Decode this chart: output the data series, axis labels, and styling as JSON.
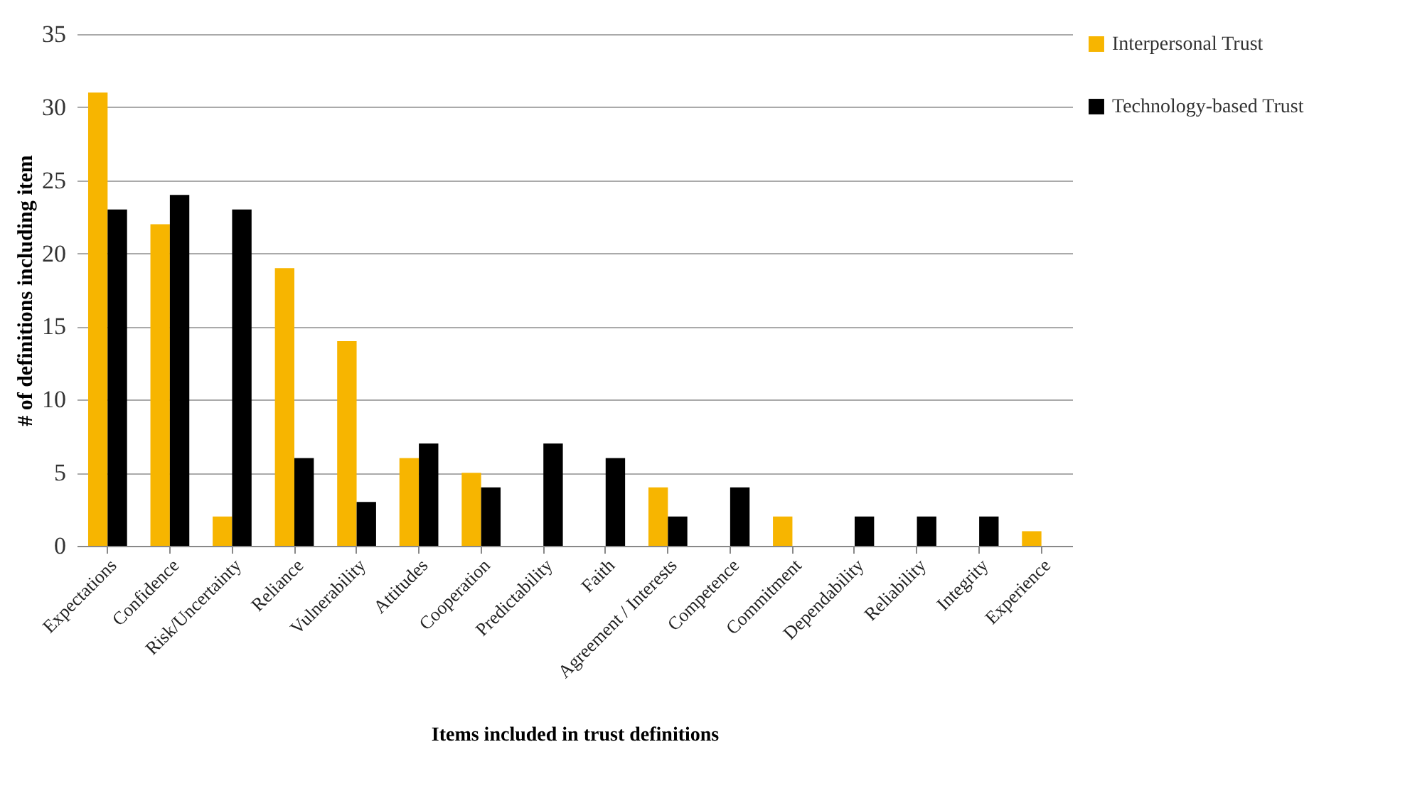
{
  "chart_data": {
    "type": "bar",
    "xlabel": "Items included in trust definitions",
    "ylabel": "# of definitions including item",
    "categories": [
      "Expectations",
      "Confidence",
      "Risk/Uncertainty",
      "Reliance",
      "Vulnerability",
      "Attitudes",
      "Cooperation",
      "Predictability",
      "Faith",
      "Agreement / Interests",
      "Competence",
      "Commitment",
      "Dependability",
      "Reliability",
      "Integrity",
      "Experience"
    ],
    "series": [
      {
        "name": "Interpersonal Trust",
        "color": "#f7b500",
        "values": [
          31,
          22,
          2,
          19,
          14,
          6,
          5,
          0,
          0,
          4,
          0,
          2,
          0,
          0,
          0,
          1
        ]
      },
      {
        "name": "Technology-based Trust",
        "color": "#000000",
        "values": [
          23,
          24,
          23,
          6,
          3,
          7,
          4,
          7,
          6,
          2,
          4,
          0,
          2,
          2,
          2,
          0
        ]
      }
    ],
    "ylim": [
      0,
      35
    ],
    "yticks": [
      0,
      5,
      10,
      15,
      20,
      25,
      30,
      35
    ],
    "grid": "y",
    "legend": "right"
  }
}
